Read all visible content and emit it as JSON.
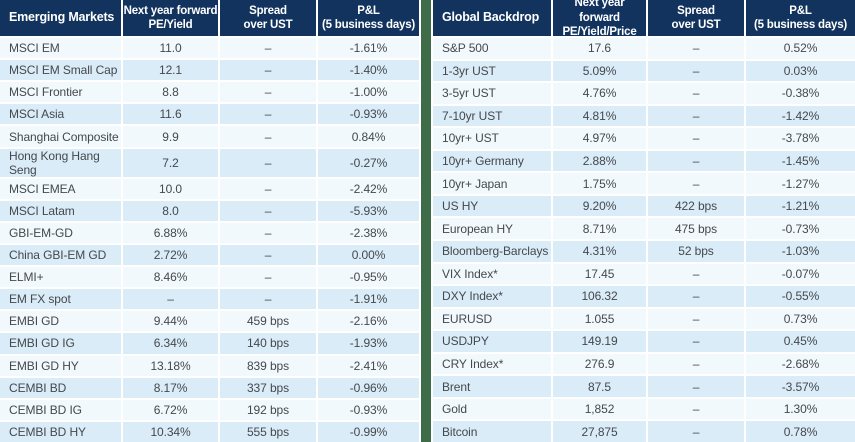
{
  "colors": {
    "header_navy": "#12335e",
    "row_light": "#f2f9fd",
    "row_blue": "#d9ecf8",
    "divider_green": "#3e6b48",
    "text_gray": "#45484c"
  },
  "tables": [
    {
      "title": "Emerging Markets",
      "columns": [
        {
          "line1": "Next year forward",
          "line2": "PE/Yield"
        },
        {
          "line1": "Spread",
          "line2": "over UST"
        },
        {
          "line1": "P&L",
          "line2": "(5 business days)"
        }
      ],
      "rows": [
        {
          "name": "MSCI EM",
          "value": "11.0",
          "spread": "–",
          "pnl": "-1.61%"
        },
        {
          "name": "MSCI EM Small Cap",
          "value": "12.1",
          "spread": "–",
          "pnl": "-1.40%"
        },
        {
          "name": "MSCI Frontier",
          "value": "8.8",
          "spread": "–",
          "pnl": "-1.00%"
        },
        {
          "name": "MSCI Asia",
          "value": "11.6",
          "spread": "–",
          "pnl": "-0.93%"
        },
        {
          "name": "Shanghai Composite",
          "value": "9.9",
          "spread": "–",
          "pnl": "0.84%"
        },
        {
          "name": "Hong Kong Hang Seng",
          "value": "7.2",
          "spread": "–",
          "pnl": "-0.27%"
        },
        {
          "name": "MSCI EMEA",
          "value": "10.0",
          "spread": "–",
          "pnl": "-2.42%"
        },
        {
          "name": "MSCI Latam",
          "value": "8.0",
          "spread": "–",
          "pnl": "-5.93%"
        },
        {
          "name": "GBI-EM-GD",
          "value": "6.88%",
          "spread": "–",
          "pnl": "-2.38%"
        },
        {
          "name": "China GBI-EM GD",
          "value": "2.72%",
          "spread": "–",
          "pnl": "0.00%"
        },
        {
          "name": "ELMI+",
          "value": "8.46%",
          "spread": "–",
          "pnl": "-0.95%"
        },
        {
          "name": "EM FX spot",
          "value": "–",
          "spread": "–",
          "pnl": "-1.91%"
        },
        {
          "name": "EMBI GD",
          "value": "9.44%",
          "spread": "459 bps",
          "pnl": "-2.16%"
        },
        {
          "name": "EMBI GD IG",
          "value": "6.34%",
          "spread": "140 bps",
          "pnl": "-1.93%"
        },
        {
          "name": "EMBI GD HY",
          "value": "13.18%",
          "spread": "839 bps",
          "pnl": "-2.41%"
        },
        {
          "name": "CEMBI BD",
          "value": "8.17%",
          "spread": "337 bps",
          "pnl": "-0.96%"
        },
        {
          "name": "CEMBI BD IG",
          "value": "6.72%",
          "spread": "192 bps",
          "pnl": "-0.93%"
        },
        {
          "name": "CEMBI BD HY",
          "value": "10.34%",
          "spread": "555 bps",
          "pnl": "-0.99%"
        }
      ]
    },
    {
      "title": "Global Backdrop",
      "columns": [
        {
          "line1": "Next year forward",
          "line2": "PE/Yield/Price"
        },
        {
          "line1": "Spread",
          "line2": "over UST"
        },
        {
          "line1": "P&L",
          "line2": "(5 business days)"
        }
      ],
      "rows": [
        {
          "name": "S&P 500",
          "value": "17.6",
          "spread": "–",
          "pnl": "0.52%"
        },
        {
          "name": "1-3yr UST",
          "value": "5.09%",
          "spread": "–",
          "pnl": "0.03%"
        },
        {
          "name": "3-5yr UST",
          "value": "4.76%",
          "spread": "–",
          "pnl": "-0.38%"
        },
        {
          "name": "7-10yr UST",
          "value": "4.81%",
          "spread": "–",
          "pnl": "-1.42%"
        },
        {
          "name": "10yr+ UST",
          "value": "4.97%",
          "spread": "–",
          "pnl": "-3.78%"
        },
        {
          "name": "10yr+ Germany",
          "value": "2.88%",
          "spread": "–",
          "pnl": "-1.45%"
        },
        {
          "name": "10yr+ Japan",
          "value": "1.75%",
          "spread": "–",
          "pnl": "-1.27%"
        },
        {
          "name": "US HY",
          "value": "9.20%",
          "spread": "422 bps",
          "pnl": "-1.21%"
        },
        {
          "name": "European HY",
          "value": "8.71%",
          "spread": "475 bps",
          "pnl": "-0.73%"
        },
        {
          "name": "Bloomberg-Barclays",
          "value": "4.31%",
          "spread": "52 bps",
          "pnl": "-1.03%"
        },
        {
          "name": "VIX Index*",
          "value": "17.45",
          "spread": "–",
          "pnl": "-0.07%"
        },
        {
          "name": "DXY Index*",
          "value": "106.32",
          "spread": "–",
          "pnl": "-0.55%"
        },
        {
          "name": "EURUSD",
          "value": "1.055",
          "spread": "–",
          "pnl": "0.73%"
        },
        {
          "name": "USDJPY",
          "value": "149.19",
          "spread": "–",
          "pnl": "0.45%"
        },
        {
          "name": "CRY Index*",
          "value": "276.9",
          "spread": "–",
          "pnl": "-2.68%"
        },
        {
          "name": "Brent",
          "value": "87.5",
          "spread": "–",
          "pnl": "-3.57%"
        },
        {
          "name": "Gold",
          "value": "1,852",
          "spread": "–",
          "pnl": "1.30%"
        },
        {
          "name": "Bitcoin",
          "value": "27,875",
          "spread": "–",
          "pnl": "0.78%"
        }
      ]
    }
  ]
}
